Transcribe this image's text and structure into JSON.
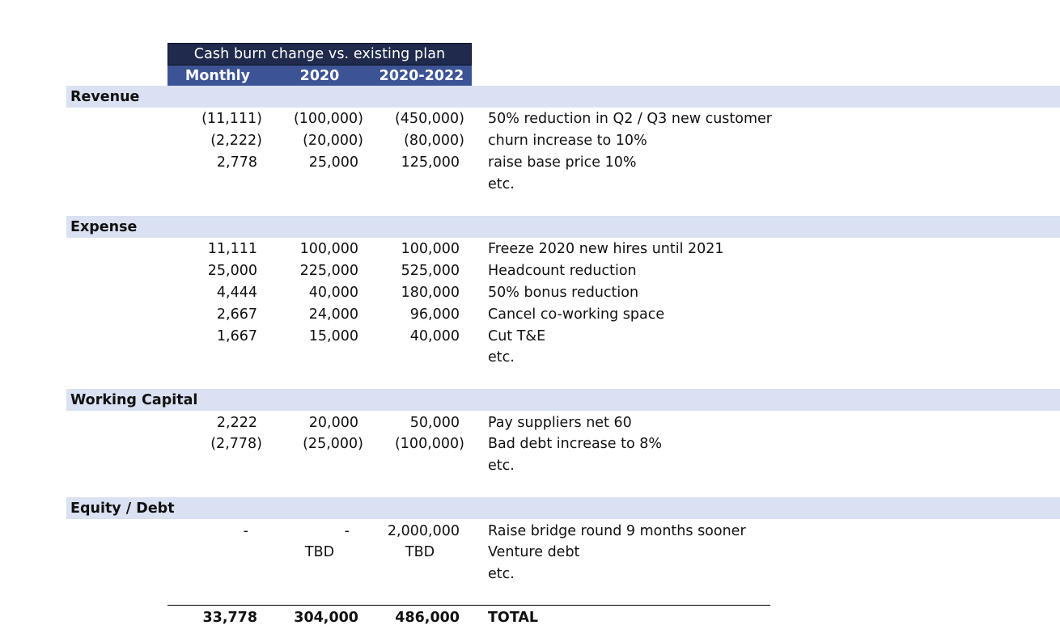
{
  "header": {
    "title": "Cash burn change vs. existing plan",
    "columns": [
      "Monthly",
      "2020",
      "2020-2022"
    ]
  },
  "sections": [
    {
      "label": "Revenue",
      "rows": [
        {
          "monthly": "(11,111)",
          "y2020": "(100,000)",
          "y2020_2022": "(450,000)",
          "desc": "50% reduction in Q2 / Q3 new customer"
        },
        {
          "monthly": "(2,222)",
          "y2020": "(20,000)",
          "y2020_2022": "(80,000)",
          "desc": "churn increase to 10%"
        },
        {
          "monthly": "2,778",
          "y2020": "25,000",
          "y2020_2022": "125,000",
          "desc": "raise base price 10%"
        },
        {
          "monthly": "",
          "y2020": "",
          "y2020_2022": "",
          "desc": "etc."
        }
      ]
    },
    {
      "label": "Expense",
      "rows": [
        {
          "monthly": "11,111",
          "y2020": "100,000",
          "y2020_2022": "100,000",
          "desc": "Freeze 2020 new hires until 2021"
        },
        {
          "monthly": "25,000",
          "y2020": "225,000",
          "y2020_2022": "525,000",
          "desc": "Headcount reduction"
        },
        {
          "monthly": "4,444",
          "y2020": "40,000",
          "y2020_2022": "180,000",
          "desc": "50% bonus reduction"
        },
        {
          "monthly": "2,667",
          "y2020": "24,000",
          "y2020_2022": "96,000",
          "desc": "Cancel co-working space"
        },
        {
          "monthly": "1,667",
          "y2020": "15,000",
          "y2020_2022": "40,000",
          "desc": "Cut T&E"
        },
        {
          "monthly": "",
          "y2020": "",
          "y2020_2022": "",
          "desc": "etc."
        }
      ]
    },
    {
      "label": "Working Capital",
      "rows": [
        {
          "monthly": "2,222",
          "y2020": "20,000",
          "y2020_2022": "50,000",
          "desc": "Pay suppliers net 60"
        },
        {
          "monthly": "(2,778)",
          "y2020": "(25,000)",
          "y2020_2022": "(100,000)",
          "desc": "Bad debt increase to 8%"
        },
        {
          "monthly": "",
          "y2020": "",
          "y2020_2022": "",
          "desc": "etc."
        }
      ]
    },
    {
      "label": "Equity / Debt",
      "rows": [
        {
          "monthly": "-",
          "y2020": "-",
          "y2020_2022": "2,000,000",
          "desc": "Raise bridge round 9 months sooner"
        },
        {
          "monthly": "",
          "y2020": "TBD",
          "y2020_2022": "TBD",
          "desc": "Venture debt"
        },
        {
          "monthly": "",
          "y2020": "",
          "y2020_2022": "",
          "desc": "etc."
        }
      ]
    }
  ],
  "total": {
    "monthly": "33,778",
    "y2020": "304,000",
    "y2020_2022": "486,000",
    "label": "TOTAL"
  },
  "colors": {
    "header_dark": "#1f2a4c",
    "header_blue": "#3c5495",
    "band": "#d9e1f2"
  }
}
